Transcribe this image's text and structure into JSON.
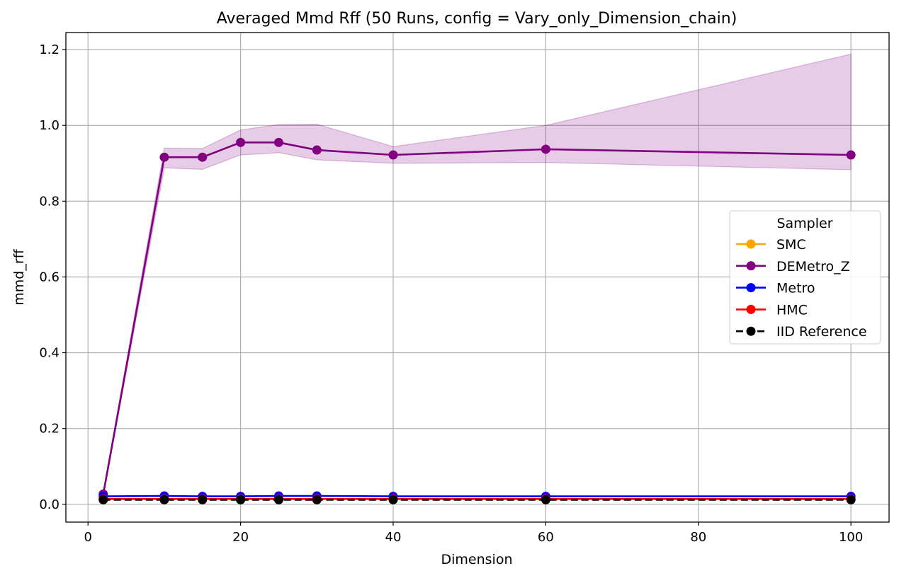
{
  "chart_data": {
    "type": "line",
    "title": "Averaged Mmd Rff (50 Runs, config = Vary_only_Dimension_chain)",
    "xlabel": "Dimension",
    "ylabel": "mmd_rff",
    "xlim": [
      -2.9,
      105
    ],
    "ylim": [
      -0.047,
      1.245
    ],
    "xticks": [
      0,
      20,
      40,
      60,
      80,
      100
    ],
    "xtick_labels": [
      "0",
      "20",
      "40",
      "60",
      "80",
      "100"
    ],
    "yticks": [
      0.0,
      0.2,
      0.4,
      0.6,
      0.8,
      1.0,
      1.2
    ],
    "ytick_labels": [
      "0.0",
      "0.2",
      "0.4",
      "0.6",
      "0.8",
      "1.0",
      "1.2"
    ],
    "grid": true,
    "legend": {
      "title": "Sampler",
      "placement": "right"
    },
    "x": [
      2,
      10,
      15,
      20,
      25,
      30,
      40,
      60,
      100
    ],
    "series": [
      {
        "name": "SMC",
        "color": "#ffa500",
        "style": "solid",
        "values": [
          0.014,
          0.014,
          0.014,
          0.014,
          0.014,
          0.014,
          0.014,
          0.014,
          0.014
        ]
      },
      {
        "name": "DEMetro_Z",
        "color": "#800080",
        "style": "solid",
        "values": [
          0.027,
          0.916,
          0.916,
          0.955,
          0.955,
          0.935,
          0.922,
          0.937,
          0.922
        ],
        "band_lower": [
          0.021,
          0.888,
          0.884,
          0.922,
          0.928,
          0.909,
          0.9,
          0.902,
          0.883
        ],
        "band_upper": [
          0.033,
          0.94,
          0.939,
          0.988,
          1.002,
          1.003,
          0.944,
          1.0,
          1.188
        ]
      },
      {
        "name": "Metro",
        "color": "#0000ff",
        "style": "solid",
        "values": [
          0.021,
          0.022,
          0.021,
          0.021,
          0.022,
          0.022,
          0.021,
          0.021,
          0.021
        ]
      },
      {
        "name": "HMC",
        "color": "#ff0000",
        "style": "solid",
        "values": [
          0.014,
          0.014,
          0.014,
          0.014,
          0.014,
          0.014,
          0.014,
          0.014,
          0.014
        ]
      },
      {
        "name": "IID Reference",
        "color": "#000000",
        "style": "dashed",
        "values": [
          0.012,
          0.012,
          0.012,
          0.012,
          0.012,
          0.012,
          0.012,
          0.012,
          0.012
        ]
      }
    ]
  }
}
